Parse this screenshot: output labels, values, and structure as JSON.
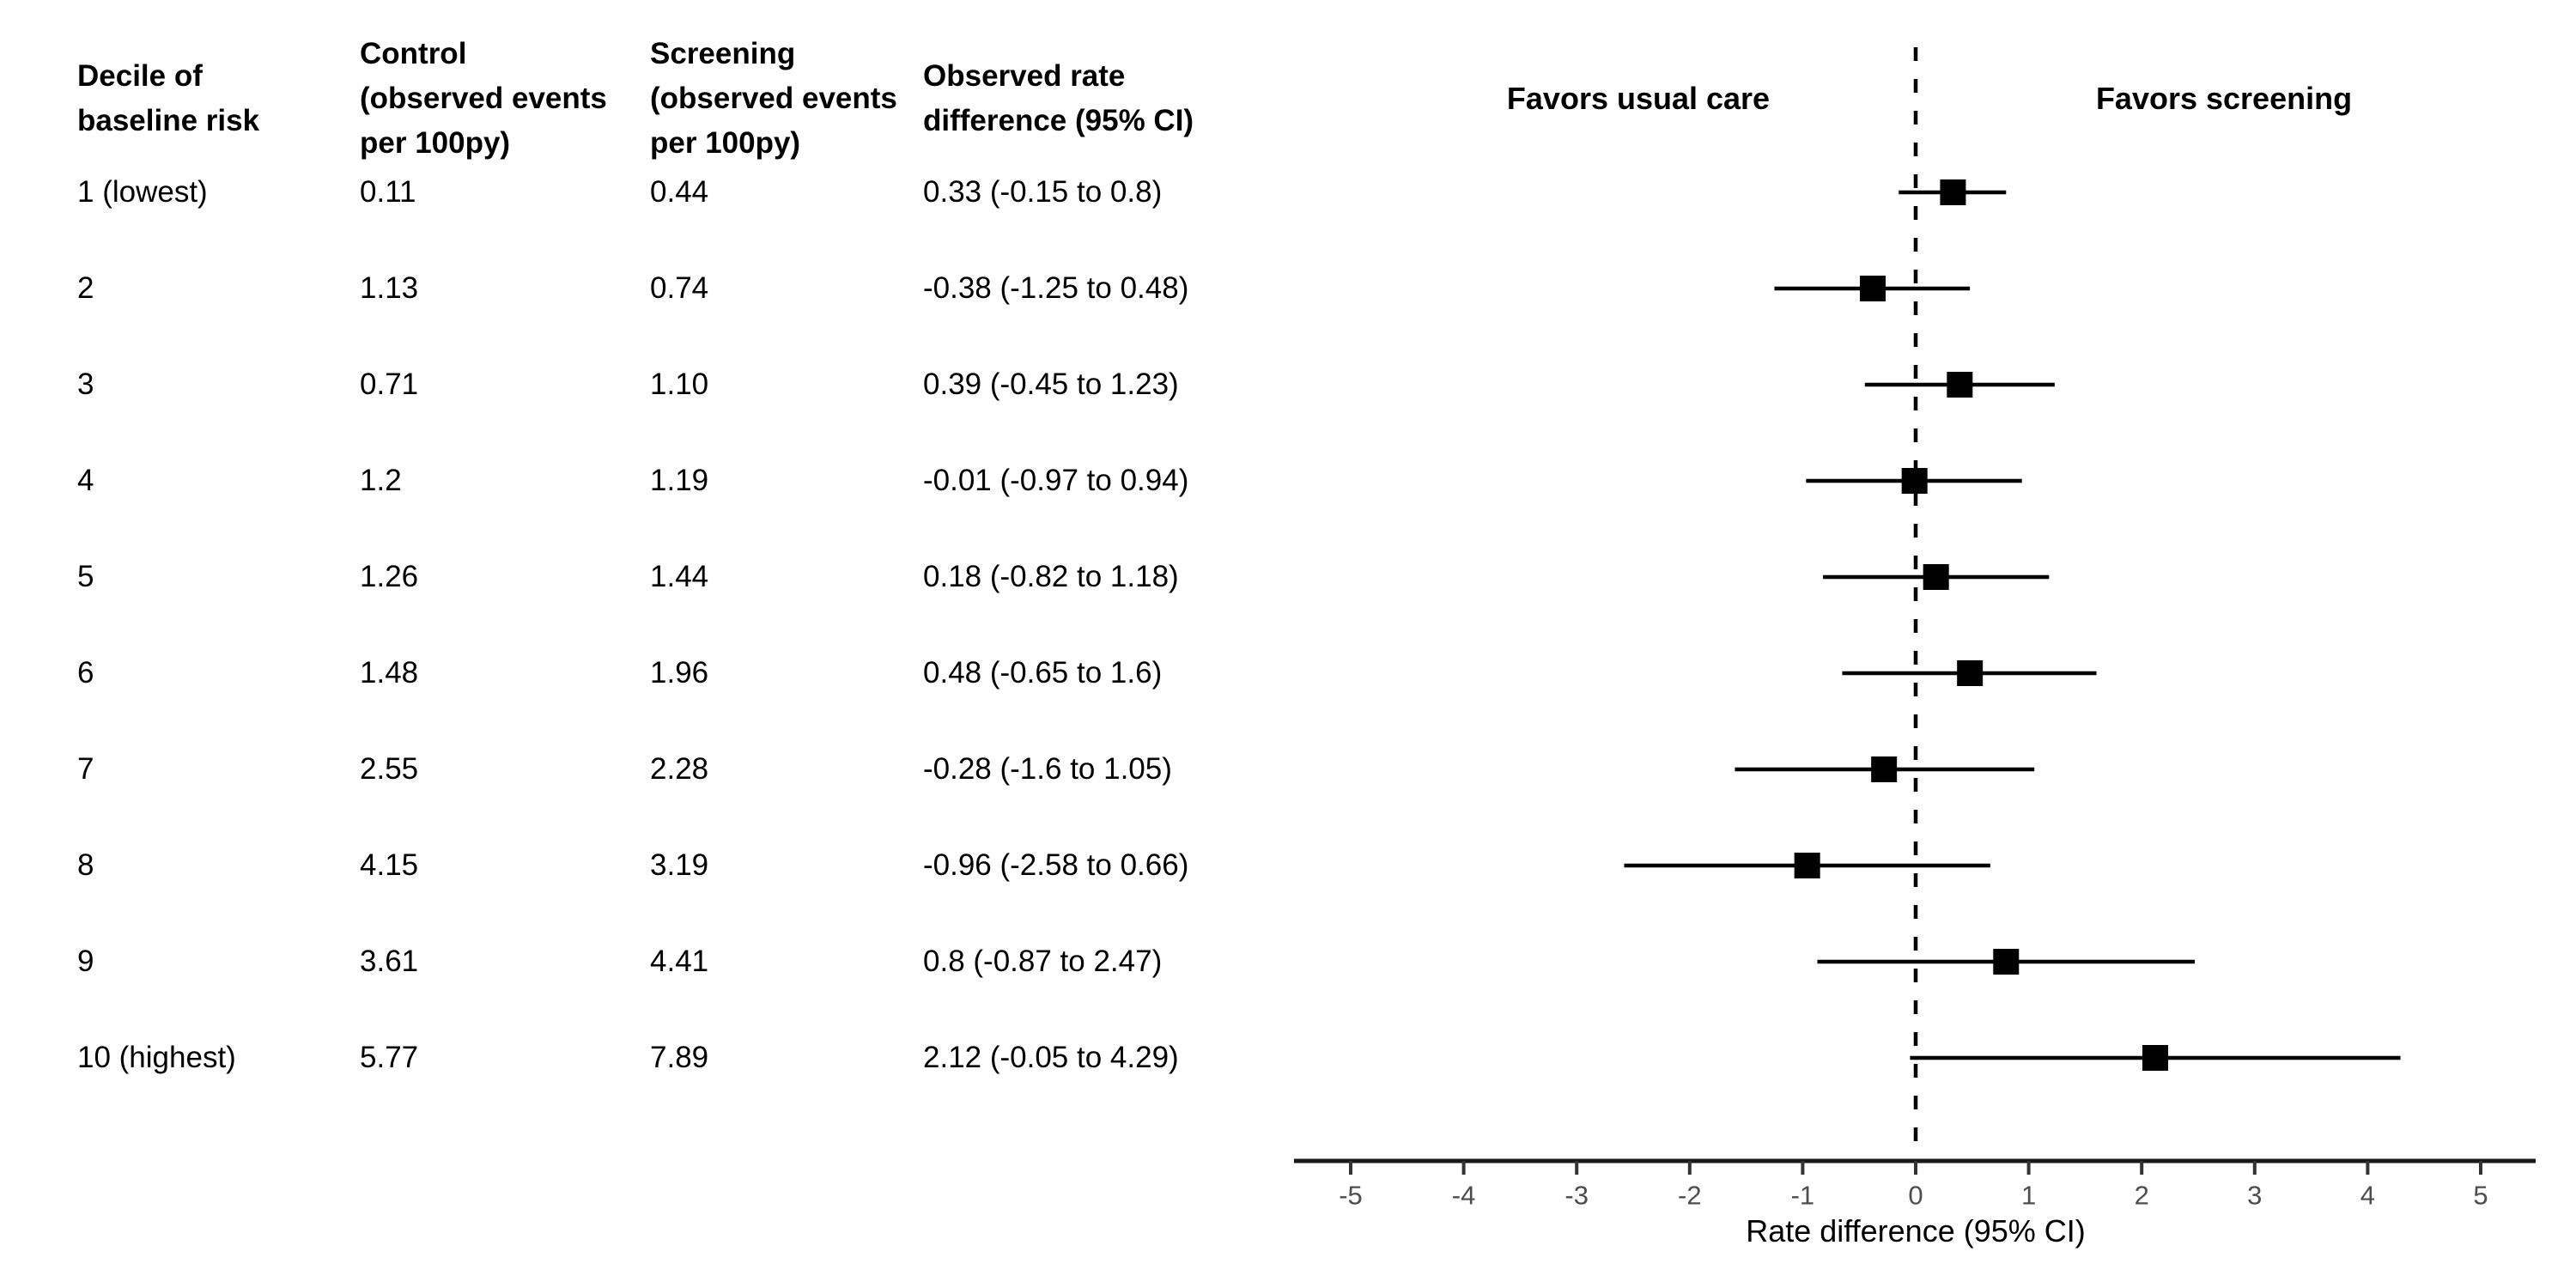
{
  "table": {
    "headers": [
      "Decile of\nbaseline risk",
      "Control\n(observed events\nper 100py)",
      "Screening\n(observed events\nper 100py)",
      "Observed rate\ndifference (95% CI)"
    ],
    "rows": [
      {
        "decile": "1 (lowest)",
        "control": "0.11",
        "screening": "0.44",
        "rate_diff": "0.33 (-0.15 to 0.8)"
      },
      {
        "decile": "2",
        "control": "1.13",
        "screening": "0.74",
        "rate_diff": "-0.38 (-1.25 to 0.48)"
      },
      {
        "decile": "3",
        "control": "0.71",
        "screening": "1.10",
        "rate_diff": "0.39 (-0.45 to 1.23)"
      },
      {
        "decile": "4",
        "control": "1.2",
        "screening": "1.19",
        "rate_diff": "-0.01 (-0.97 to 0.94)"
      },
      {
        "decile": "5",
        "control": "1.26",
        "screening": "1.44",
        "rate_diff": "0.18 (-0.82 to 1.18)"
      },
      {
        "decile": "6",
        "control": "1.48",
        "screening": "1.96",
        "rate_diff": "0.48 (-0.65 to 1.6)"
      },
      {
        "decile": "7",
        "control": "2.55",
        "screening": "2.28",
        "rate_diff": "-0.28 (-1.6 to 1.05)"
      },
      {
        "decile": "8",
        "control": "4.15",
        "screening": "3.19",
        "rate_diff": "-0.96 (-2.58 to 0.66)"
      },
      {
        "decile": "9",
        "control": "3.61",
        "screening": "4.41",
        "rate_diff": "0.8 (-0.87 to 2.47)"
      },
      {
        "decile": "10 (highest)",
        "control": "5.77",
        "screening": "7.89",
        "rate_diff": "2.12 (-0.05 to 4.29)"
      }
    ]
  },
  "plot": {
    "favors_left": "Favors usual care",
    "favors_right": "Favors screening",
    "xlabel": "Rate difference (95% CI)"
  },
  "chart_data": {
    "type": "forest",
    "categories": [
      "1 (lowest)",
      "2",
      "3",
      "4",
      "5",
      "6",
      "7",
      "8",
      "9",
      "10 (highest)"
    ],
    "estimates": [
      0.33,
      -0.38,
      0.39,
      -0.01,
      0.18,
      0.48,
      -0.28,
      -0.96,
      0.8,
      2.12
    ],
    "ci_lower": [
      -0.15,
      -1.25,
      -0.45,
      -0.97,
      -0.82,
      -0.65,
      -1.6,
      -2.58,
      -0.87,
      -0.05
    ],
    "ci_upper": [
      0.8,
      0.48,
      1.23,
      0.94,
      1.18,
      1.6,
      1.05,
      0.66,
      2.47,
      4.29
    ],
    "control_events_per_100py": [
      0.11,
      1.13,
      0.71,
      1.2,
      1.26,
      1.48,
      2.55,
      4.15,
      3.61,
      5.77
    ],
    "screening_events_per_100py": [
      0.44,
      0.74,
      1.1,
      1.19,
      1.44,
      1.96,
      2.28,
      3.19,
      4.41,
      7.89
    ],
    "title": "",
    "xlabel": "Rate difference (95% CI)",
    "xticks": [
      -5,
      -4,
      -3,
      -2,
      -1,
      0,
      1,
      2,
      3,
      4,
      5
    ],
    "xlim": [
      -5.5,
      5.5
    ],
    "reference_line": 0,
    "reference_line_style": "dashed",
    "annotations": [
      "Favors usual care",
      "Favors screening"
    ],
    "grid": false,
    "legend": "none"
  },
  "colors": {
    "text": "#000000",
    "marker": "#000000",
    "ci_line": "#000000",
    "axis_line": "#1a1a1a",
    "tick_mark": "#333333",
    "tick_label": "#4d4d4d",
    "background": "#ffffff"
  }
}
